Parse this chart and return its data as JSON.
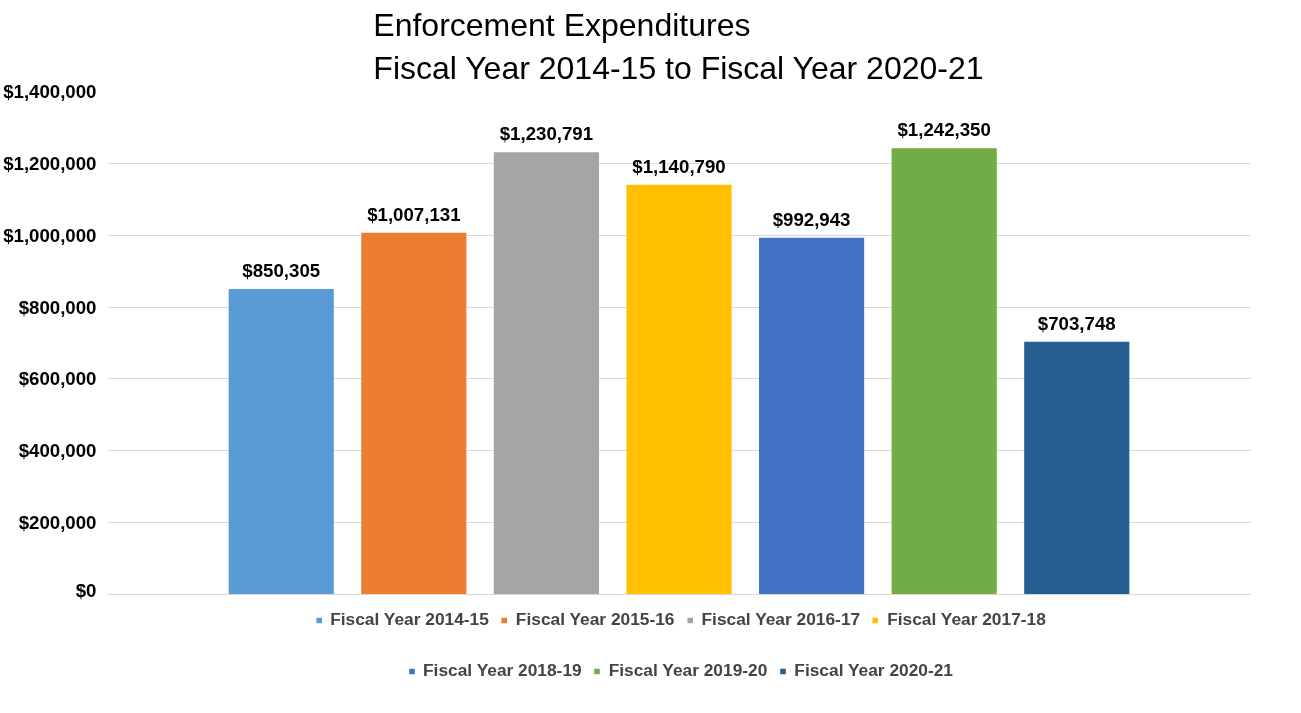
{
  "chart_data": {
    "type": "bar",
    "title": "Enforcement Expenditures\nFiscal Year 2014-15 to Fiscal Year 2020-21",
    "categories": [
      null
    ],
    "series": [
      {
        "name": "Fiscal Year 2014-15",
        "color": "#5b9bd5",
        "values": [
          850305
        ],
        "value_labels": [
          "$850,305"
        ]
      },
      {
        "name": "Fiscal Year 2015-16",
        "color": "#ed7d31",
        "values": [
          1007131
        ],
        "value_labels": [
          "$1,007,131"
        ]
      },
      {
        "name": "Fiscal Year 2016-17",
        "color": "#a5a5a5",
        "values": [
          1230791
        ],
        "value_labels": [
          "$1,230,791"
        ]
      },
      {
        "name": "Fiscal Year 2017-18",
        "color": "#ffc000",
        "values": [
          1140790
        ],
        "value_labels": [
          "$1,140,790"
        ]
      },
      {
        "name": "Fiscal Year 2018-19",
        "color": "#4472c4",
        "values": [
          992943
        ],
        "value_labels": [
          "$992,943"
        ]
      },
      {
        "name": "Fiscal Year 2019-20",
        "color": "#70ad47",
        "values": [
          1242350
        ],
        "value_labels": [
          "$1,242,350"
        ]
      },
      {
        "name": "Fiscal Year 2020-21",
        "color": "#255e91",
        "values": [
          703748
        ],
        "value_labels": [
          "$703,748"
        ]
      }
    ],
    "ylim": [
      0,
      1400000
    ],
    "yticks": [
      {
        "value": 0,
        "label": "$0"
      },
      {
        "value": 200000,
        "label": "$200,000"
      },
      {
        "value": 400000,
        "label": "$400,000"
      },
      {
        "value": 600000,
        "label": "$600,000"
      },
      {
        "value": 800000,
        "label": "$800,000"
      },
      {
        "value": 1000000,
        "label": "$1,000,000"
      },
      {
        "value": 1200000,
        "label": "$1,200,000"
      },
      {
        "value": 1400000,
        "label": "$1,400,000"
      }
    ],
    "grid": "y",
    "legend": "bottom"
  }
}
